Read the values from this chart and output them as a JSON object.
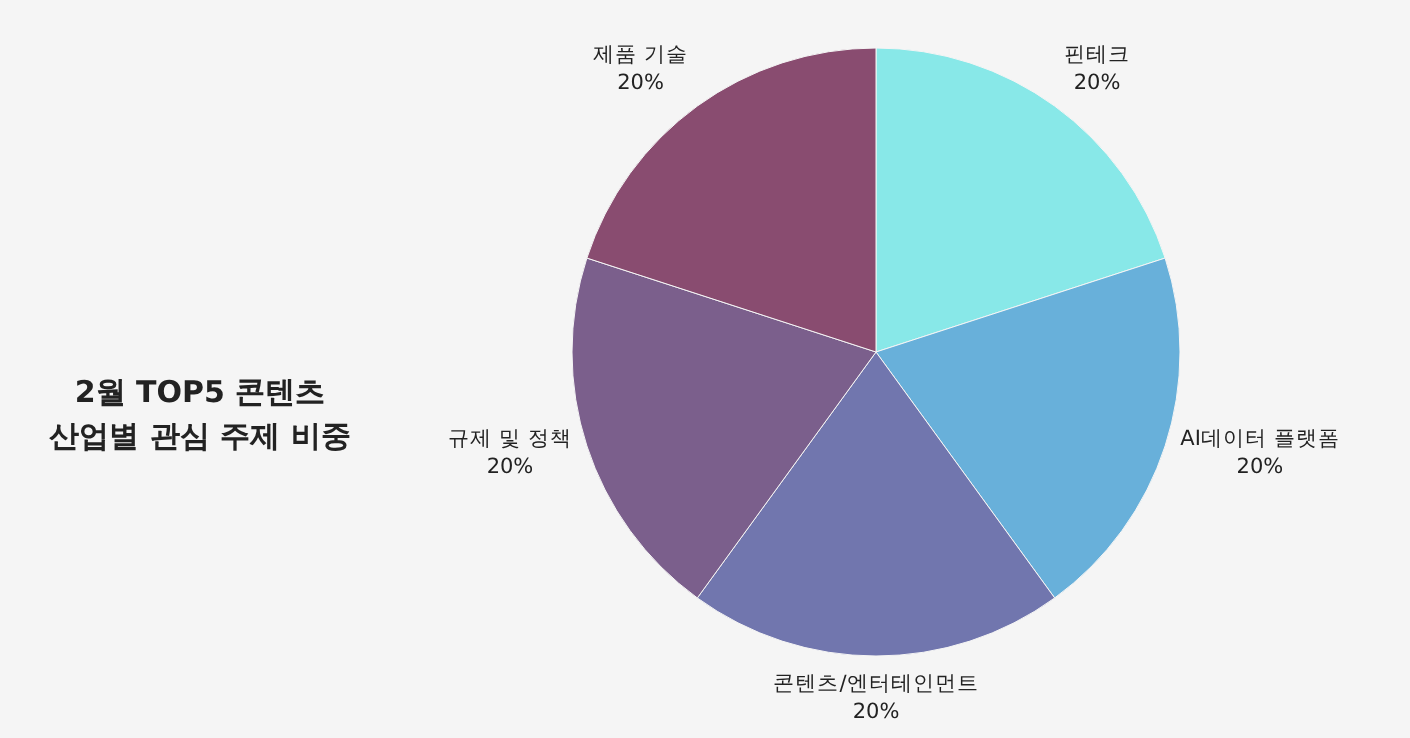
{
  "chart_data": {
    "type": "pie",
    "title": "2월 TOP5 콘텐츠\n산업별 관심 주제 비중",
    "categories": [
      "핀테크",
      "AI데이터 플랫폼",
      "콘텐츠/엔터테인먼트",
      "규제 및 정책",
      "제품 기술"
    ],
    "values": [
      20,
      20,
      20,
      20,
      20
    ],
    "value_labels": [
      "20%",
      "20%",
      "20%",
      "20%",
      "20%"
    ],
    "colors": [
      "#88e8e8",
      "#68b0da",
      "#7176ae",
      "#7b5f8c",
      "#894c70"
    ]
  }
}
